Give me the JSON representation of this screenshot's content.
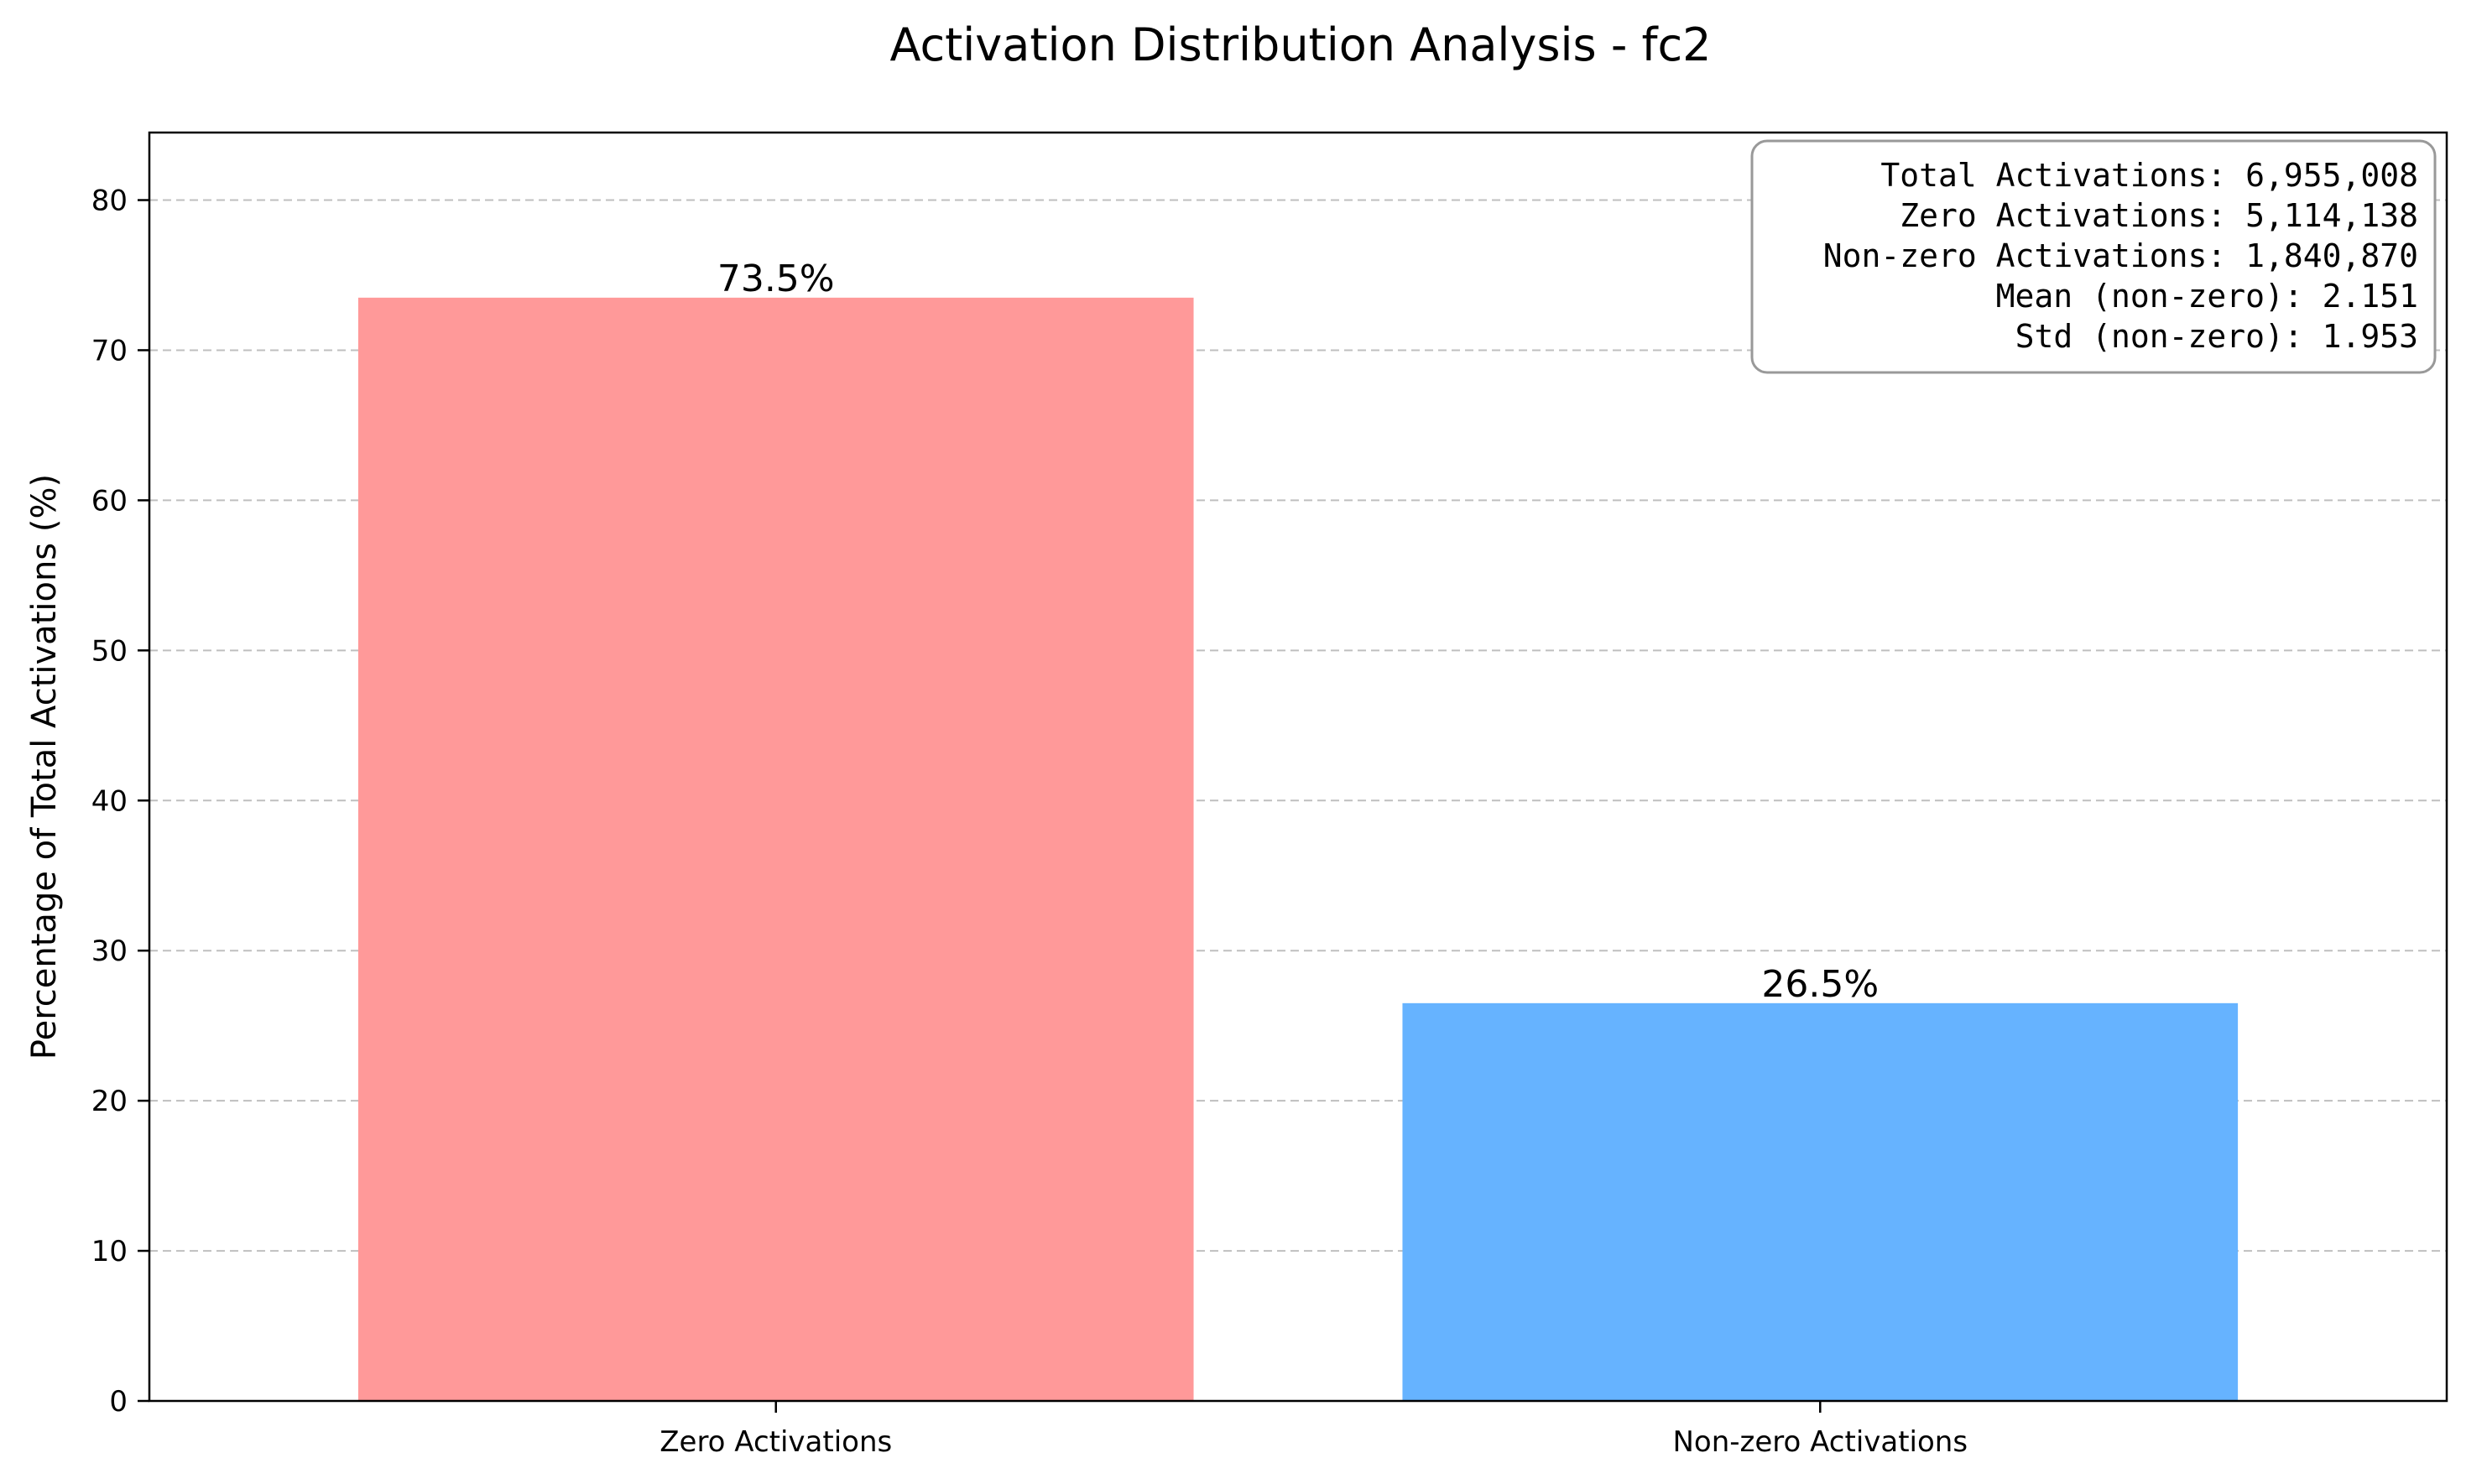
{
  "chart_data": {
    "type": "bar",
    "title": "Activation Distribution Analysis - fc2",
    "xlabel": "",
    "ylabel": "Percentage of Total Activations (%)",
    "categories": [
      "Zero Activations",
      "Non-zero Activations"
    ],
    "values": [
      73.5,
      26.5
    ],
    "bar_labels": [
      "73.5%",
      "26.5%"
    ],
    "colors": [
      "#ff9999",
      "#66b3ff"
    ],
    "ylim": [
      0,
      84.5
    ],
    "yticks": [
      0,
      10,
      20,
      30,
      40,
      50,
      60,
      70,
      80
    ],
    "grid": true,
    "grid_axis": "y",
    "stats_box": {
      "placement": "top-right",
      "lines": [
        "Total Activations: 6,955,008",
        "Zero Activations: 5,114,138",
        "Non-zero Activations: 1,840,870",
        "Mean (non-zero): 2.151",
        "Std (non-zero): 1.953"
      ]
    }
  }
}
